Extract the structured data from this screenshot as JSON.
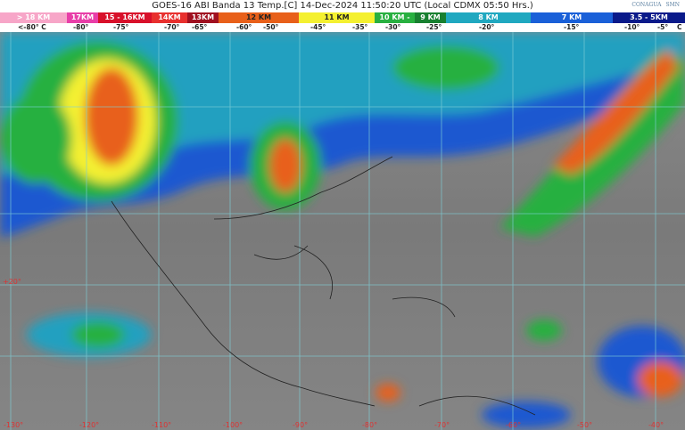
{
  "header": {
    "title": "GOES-16 ABI Banda 13 Temp.[C] 14-Dec-2024 11:50:20 UTC (Local CDMX  05:50 Hrs.)",
    "logos": [
      "CONAGUA",
      "SMN"
    ]
  },
  "legend": {
    "segments": [
      {
        "label": "> 18 KM",
        "color": "#f7a6c8"
      },
      {
        "label": "17KM",
        "color": "#e83ea8"
      },
      {
        "label": "15 - 16KM",
        "color": "#d8102a"
      },
      {
        "label": "14KM",
        "color": "#e8302e"
      },
      {
        "label": "13KM",
        "color": "#a01020"
      },
      {
        "label": "12 KM",
        "color": "#e8601a"
      },
      {
        "label": "11 KM",
        "color": "#f4f030"
      },
      {
        "label": "10 KM -",
        "color": "#28b040"
      },
      {
        "label": "9 KM",
        "color": "#188030"
      },
      {
        "label": "8 KM",
        "color": "#20a8c0"
      },
      {
        "label": "7 KM",
        "color": "#1a60d8"
      },
      {
        "label": "3.5 - 5KM",
        "color": "#0a1a8a"
      }
    ],
    "temps": [
      "<-80° C",
      "-80°",
      "-75°",
      "-70°",
      "-65°",
      "-60°",
      "-50°",
      "-45°",
      "-35°",
      "-30°",
      "-25°",
      "-20°",
      "-15°",
      "-10°",
      "-5°",
      "C"
    ]
  },
  "map": {
    "longitudes": [
      "-130°",
      "-120°",
      "-110°",
      "-100°",
      "-90°",
      "-80°",
      "-70°",
      "-60°",
      "-50°",
      "-40°"
    ],
    "latitudes": [
      "+20°"
    ],
    "grid_color": "#7fd0d8",
    "label_color": "#dd3333"
  }
}
